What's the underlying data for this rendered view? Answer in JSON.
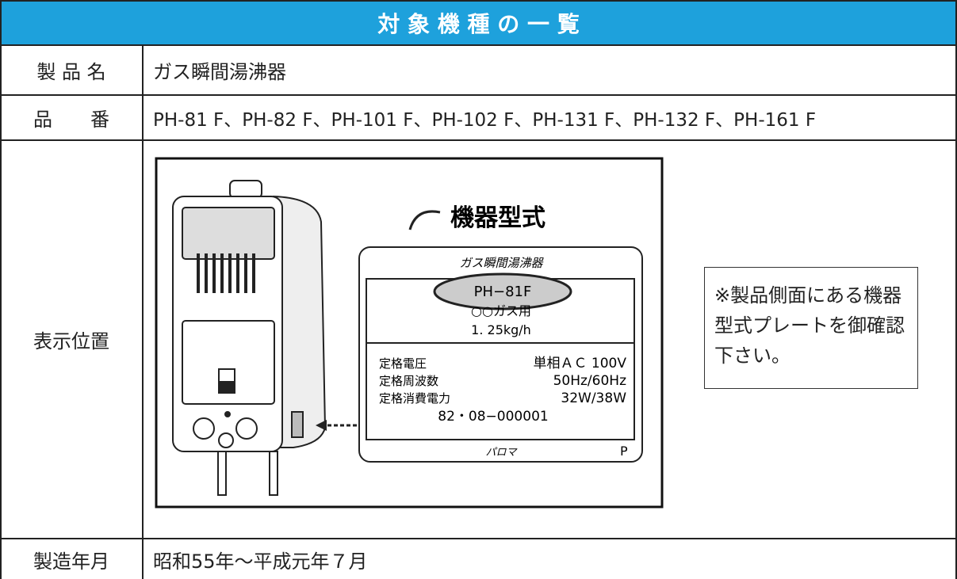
{
  "header": {
    "title": "対 象 機 種 の 一 覧"
  },
  "table": {
    "rows": [
      [
        "製 品 名",
        "ガス瞬間湯沸器"
      ],
      [
        "品　　番",
        "PH-81 F、PH-82 F、PH-101 F、PH-102 F、PH-131 F、PH-132 F、PH-161 F"
      ],
      [
        "表示位置"
      ],
      [
        "製造年月",
        "昭和55年～平成元年７月"
      ]
    ]
  },
  "figure": {
    "callout": "機器型式",
    "plate": {
      "name": "ガス瞬間湯沸器",
      "model": "PH−81F",
      "gas": "○○ガス用",
      "consumption": "1. 25kg/h",
      "specs": [
        [
          "定格電圧",
          "単相ＡＣ 100V"
        ],
        [
          "定格周波数",
          "50Hz/60Hz"
        ],
        [
          "定格消費電力",
          "32W/38W"
        ]
      ],
      "serial": "82・08−000001",
      "maker": "パロマ",
      "mark": "P"
    }
  },
  "note": "※製品側面にある機器型式プレートを御確認下さい。"
}
